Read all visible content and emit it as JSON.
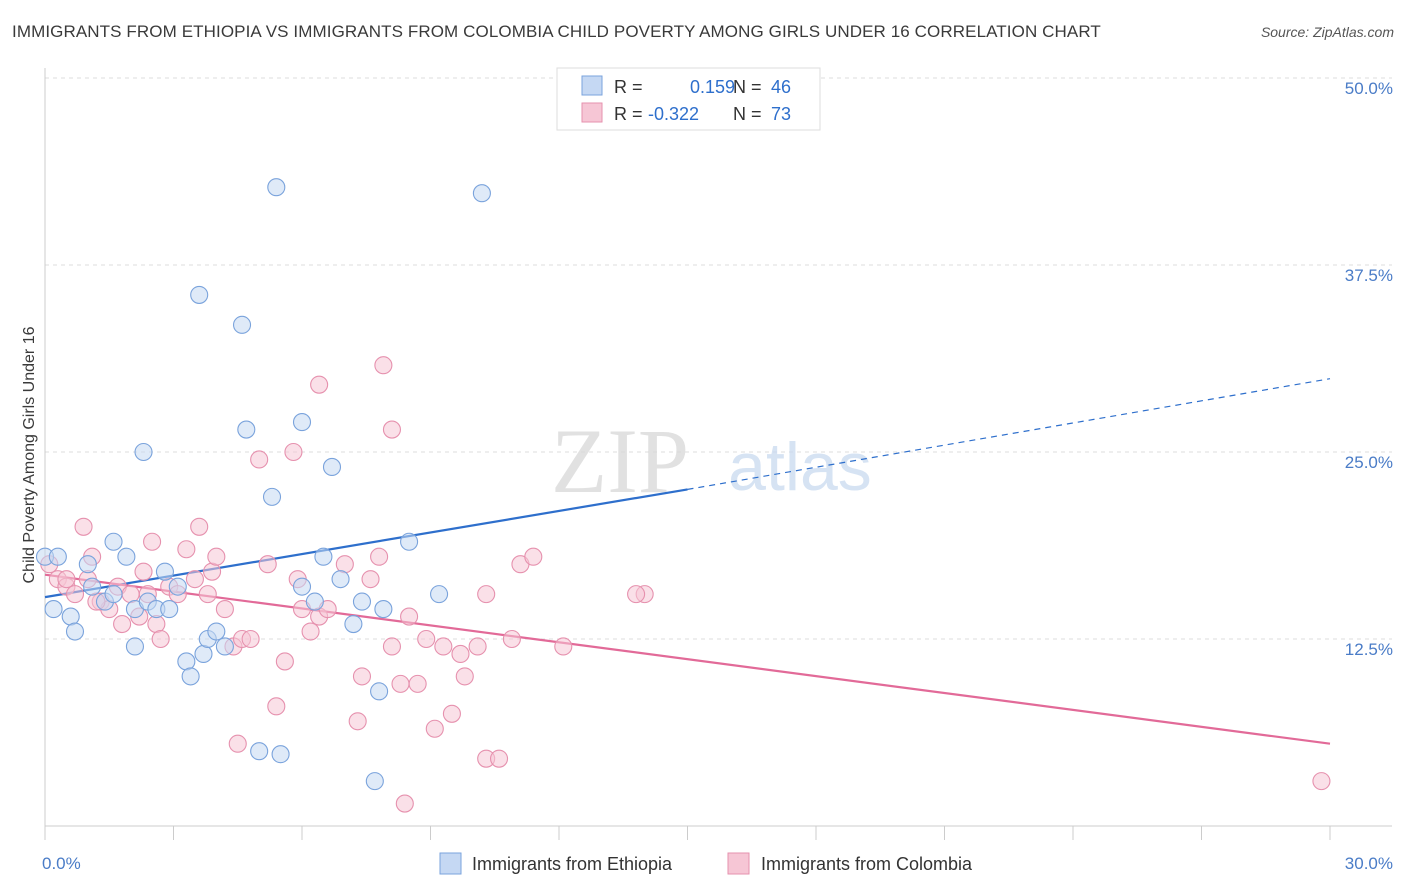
{
  "title": "IMMIGRANTS FROM ETHIOPIA VS IMMIGRANTS FROM COLOMBIA CHILD POVERTY AMONG GIRLS UNDER 16 CORRELATION CHART",
  "source": "Source: ZipAtlas.com",
  "watermark": {
    "zip": "ZIP",
    "atlas": "atlas"
  },
  "colors": {
    "ethiopia_fill": "#c5d8f3",
    "ethiopia_stroke": "#7aa3dc",
    "ethiopia_line": "#2e6fcc",
    "colombia_fill": "#f6c6d5",
    "colombia_stroke": "#e691ae",
    "colombia_line": "#e26a98",
    "tick_label": "#4a7cc7",
    "grid": "#dddddd"
  },
  "legend_box": {
    "rows": [
      {
        "r_label": "R =",
        "r_value": "0.159",
        "n_label": "N =",
        "n_value": "46"
      },
      {
        "r_label": "R =",
        "r_value": "-0.322",
        "n_label": "N =",
        "n_value": "73"
      }
    ]
  },
  "bottom_legend": [
    "Immigrants from Ethiopia",
    "Immigrants from Colombia"
  ],
  "chart_data": {
    "type": "scatter",
    "title": "IMMIGRANTS FROM ETHIOPIA VS IMMIGRANTS FROM COLOMBIA CHILD POVERTY AMONG GIRLS UNDER 16 CORRELATION CHART",
    "xlabel": "",
    "ylabel": "Child Poverty Among Girls Under 16",
    "xlim": [
      0,
      30
    ],
    "ylim": [
      0,
      50
    ],
    "x_tick_labels": [
      {
        "value": 0,
        "label": "0.0%"
      },
      {
        "value": 30,
        "label": "30.0%"
      }
    ],
    "y_tick_labels": [
      {
        "value": 12.5,
        "label": "12.5%"
      },
      {
        "value": 25,
        "label": "25.0%"
      },
      {
        "value": 37.5,
        "label": "37.5%"
      },
      {
        "value": 50,
        "label": "50.0%"
      }
    ],
    "grid": true,
    "series": [
      {
        "name": "Immigrants from Ethiopia",
        "r": 0.159,
        "n": 46,
        "trend": {
          "x0": 0,
          "y0": 15.3,
          "x1": 15,
          "y1": 22.5,
          "dashed_to_x": 30,
          "dashed_to_y": 29.9
        },
        "points": [
          [
            0.0,
            18.0
          ],
          [
            0.3,
            18.0
          ],
          [
            0.6,
            14.0
          ],
          [
            1.0,
            17.5
          ],
          [
            0.7,
            13.0
          ],
          [
            1.1,
            16.0
          ],
          [
            1.4,
            15.0
          ],
          [
            1.6,
            15.5
          ],
          [
            1.6,
            19.0
          ],
          [
            1.9,
            18.0
          ],
          [
            2.1,
            14.5
          ],
          [
            2.1,
            12.0
          ],
          [
            2.4,
            15.0
          ],
          [
            2.6,
            14.5
          ],
          [
            2.8,
            17.0
          ],
          [
            2.9,
            14.5
          ],
          [
            3.1,
            16.0
          ],
          [
            3.3,
            11.0
          ],
          [
            3.4,
            10.0
          ],
          [
            3.7,
            11.5
          ],
          [
            3.8,
            12.5
          ],
          [
            4.0,
            13.0
          ],
          [
            4.2,
            12.0
          ],
          [
            2.3,
            25.0
          ],
          [
            3.6,
            35.5
          ],
          [
            4.6,
            33.5
          ],
          [
            4.7,
            26.5
          ],
          [
            5.3,
            22.0
          ],
          [
            5.4,
            42.7
          ],
          [
            6.0,
            27.0
          ],
          [
            6.0,
            16.0
          ],
          [
            6.3,
            15.0
          ],
          [
            6.5,
            18.0
          ],
          [
            6.7,
            24.0
          ],
          [
            6.9,
            16.5
          ],
          [
            7.2,
            13.5
          ],
          [
            7.4,
            15.0
          ],
          [
            7.7,
            3.0
          ],
          [
            7.8,
            9.0
          ],
          [
            7.9,
            14.5
          ],
          [
            8.5,
            19.0
          ],
          [
            9.2,
            15.5
          ],
          [
            10.2,
            42.3
          ],
          [
            5.0,
            5.0
          ],
          [
            5.5,
            4.8
          ],
          [
            0.2,
            14.5
          ]
        ]
      },
      {
        "name": "Immigrants from Colombia",
        "r": -0.322,
        "n": 73,
        "trend": {
          "x0": 0,
          "y0": 16.8,
          "x1": 30,
          "y1": 5.5
        },
        "points": [
          [
            0.1,
            17.5
          ],
          [
            0.3,
            16.5
          ],
          [
            0.5,
            16.0
          ],
          [
            0.7,
            15.5
          ],
          [
            0.9,
            20.0
          ],
          [
            1.0,
            16.5
          ],
          [
            1.1,
            18.0
          ],
          [
            1.3,
            15.0
          ],
          [
            1.5,
            14.5
          ],
          [
            1.7,
            16.0
          ],
          [
            1.8,
            13.5
          ],
          [
            2.0,
            15.5
          ],
          [
            2.2,
            14.0
          ],
          [
            2.3,
            17.0
          ],
          [
            2.5,
            19.0
          ],
          [
            2.6,
            13.5
          ],
          [
            2.7,
            12.5
          ],
          [
            2.9,
            16.0
          ],
          [
            3.1,
            15.5
          ],
          [
            3.3,
            18.5
          ],
          [
            3.5,
            16.5
          ],
          [
            3.6,
            20.0
          ],
          [
            3.8,
            15.5
          ],
          [
            3.9,
            17.0
          ],
          [
            4.0,
            18.0
          ],
          [
            4.2,
            14.5
          ],
          [
            4.4,
            12.0
          ],
          [
            4.5,
            5.5
          ],
          [
            4.6,
            12.5
          ],
          [
            4.8,
            12.5
          ],
          [
            5.0,
            24.5
          ],
          [
            5.2,
            17.5
          ],
          [
            5.4,
            8.0
          ],
          [
            5.6,
            11.0
          ],
          [
            5.8,
            25.0
          ],
          [
            5.9,
            16.5
          ],
          [
            6.0,
            14.5
          ],
          [
            6.2,
            13.0
          ],
          [
            6.4,
            14.0
          ],
          [
            6.6,
            14.5
          ],
          [
            6.4,
            29.5
          ],
          [
            7.0,
            17.5
          ],
          [
            7.3,
            7.0
          ],
          [
            7.4,
            10.0
          ],
          [
            7.6,
            16.5
          ],
          [
            7.8,
            18.0
          ],
          [
            7.9,
            30.8
          ],
          [
            8.1,
            12.0
          ],
          [
            8.3,
            9.5
          ],
          [
            8.5,
            14.0
          ],
          [
            8.7,
            9.5
          ],
          [
            8.9,
            12.5
          ],
          [
            9.1,
            6.5
          ],
          [
            9.3,
            12.0
          ],
          [
            9.5,
            7.5
          ],
          [
            9.7,
            11.5
          ],
          [
            9.8,
            10.0
          ],
          [
            10.1,
            12.0
          ],
          [
            10.3,
            4.5
          ],
          [
            10.6,
            4.5
          ],
          [
            10.9,
            12.5
          ],
          [
            11.1,
            17.5
          ],
          [
            11.4,
            18.0
          ],
          [
            12.1,
            12.0
          ],
          [
            8.1,
            26.5
          ],
          [
            14.0,
            15.5
          ],
          [
            8.4,
            1.5
          ],
          [
            10.3,
            15.5
          ],
          [
            13.8,
            15.5
          ],
          [
            29.8,
            3.0
          ],
          [
            2.4,
            15.5
          ],
          [
            1.2,
            15.0
          ],
          [
            0.5,
            16.5
          ]
        ]
      }
    ]
  }
}
